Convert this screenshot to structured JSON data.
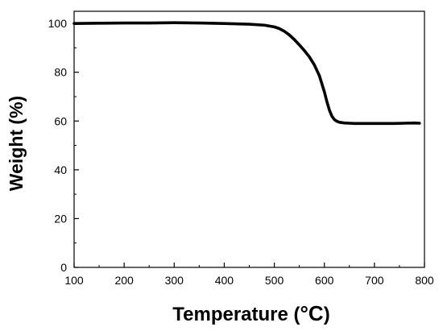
{
  "chart_data": {
    "type": "line",
    "title": "",
    "xlabel": "Temperature (",
    "xlabel_unit": "°C",
    "xlabel_close": ")",
    "ylabel": "Weight (%)",
    "xlim": [
      100,
      800
    ],
    "ylim": [
      0,
      105
    ],
    "x_ticks": [
      100,
      200,
      300,
      400,
      500,
      600,
      700,
      800
    ],
    "y_ticks": [
      0,
      20,
      40,
      60,
      80,
      100
    ],
    "grid": false,
    "legend": "none",
    "line_color": "#000000",
    "series": [
      {
        "x": [
          100,
          150,
          200,
          250,
          300,
          350,
          400,
          450,
          480,
          500,
          510,
          520,
          530,
          540,
          550,
          560,
          570,
          580,
          590,
          600,
          605,
          610,
          615,
          620,
          625,
          630,
          640,
          650,
          660,
          680,
          700,
          720,
          740,
          760,
          780,
          790
        ],
        "y": [
          100.0,
          100.1,
          100.2,
          100.2,
          100.3,
          100.2,
          100.0,
          99.7,
          99.3,
          98.6,
          97.9,
          96.8,
          95.3,
          93.4,
          91.2,
          88.9,
          86.3,
          83.0,
          78.6,
          72.0,
          68.0,
          64.5,
          62.0,
          60.6,
          59.9,
          59.5,
          59.2,
          59.1,
          59.0,
          59.0,
          59.0,
          59.0,
          59.0,
          59.1,
          59.2,
          59.1
        ]
      }
    ]
  }
}
